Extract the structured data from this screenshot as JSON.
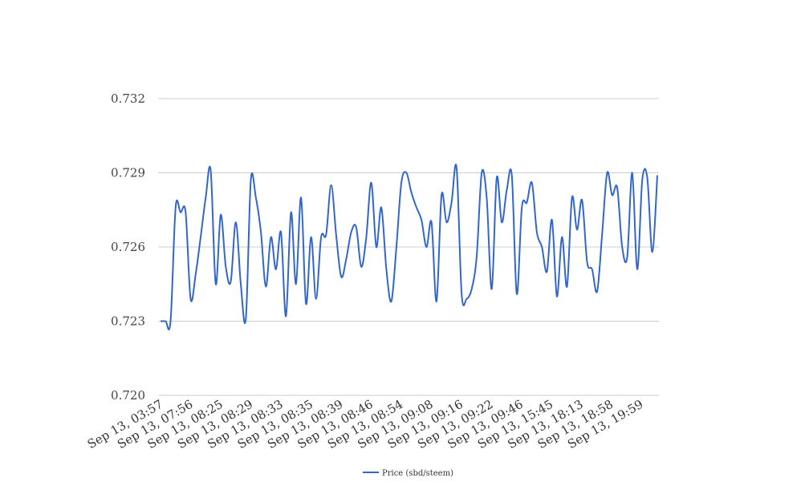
{
  "chart_data": {
    "type": "line",
    "ylim": [
      0.72,
      0.732
    ],
    "y_ticks": [
      "0.720",
      "0.723",
      "0.726",
      "0.729",
      "0.732"
    ],
    "x_tick_labels": [
      "Sep 13, 03:57",
      "Sep 13, 07:56",
      "Sep 13, 08:25",
      "Sep 13, 08:29",
      "Sep 13, 08:33",
      "Sep 13, 08:35",
      "Sep 13, 08:39",
      "Sep 13, 08:46",
      "Sep 13, 08:54",
      "Sep 13, 09:08",
      "Sep 13, 09:16",
      "Sep 13, 09:22",
      "Sep 13, 09:46",
      "Sep 13, 15:45",
      "Sep 13, 18:13",
      "Sep 13, 18:58",
      "Sep 13, 19:59"
    ],
    "grid": true,
    "legend_position": "bottom",
    "series": [
      {
        "name": "Price (sbd/steem)",
        "color": "#3366cc",
        "values": [
          0.723,
          0.723,
          0.723,
          0.7276,
          0.7274,
          0.7274,
          0.7239,
          0.7249,
          0.7264,
          0.728,
          0.7291,
          0.7245,
          0.7273,
          0.7252,
          0.7246,
          0.727,
          0.7245,
          0.7231,
          0.7287,
          0.728,
          0.7266,
          0.7244,
          0.7264,
          0.7251,
          0.7266,
          0.7232,
          0.7274,
          0.7245,
          0.728,
          0.7237,
          0.7264,
          0.7239,
          0.7264,
          0.7265,
          0.7285,
          0.7265,
          0.7248,
          0.7255,
          0.7266,
          0.7268,
          0.7252,
          0.7264,
          0.7286,
          0.726,
          0.7276,
          0.7251,
          0.7238,
          0.726,
          0.7286,
          0.729,
          0.7282,
          0.7276,
          0.7271,
          0.726,
          0.727,
          0.7238,
          0.7281,
          0.727,
          0.7278,
          0.7292,
          0.7241,
          0.7239,
          0.7243,
          0.7256,
          0.729,
          0.728,
          0.7243,
          0.7288,
          0.727,
          0.7283,
          0.7289,
          0.7241,
          0.7276,
          0.7278,
          0.7286,
          0.7266,
          0.726,
          0.725,
          0.7271,
          0.724,
          0.7264,
          0.7244,
          0.728,
          0.7267,
          0.7279,
          0.7254,
          0.7251,
          0.7242,
          0.7265,
          0.729,
          0.7281,
          0.7284,
          0.726,
          0.7256,
          0.729,
          0.7251,
          0.7287,
          0.7288,
          0.7258,
          0.7289
        ]
      }
    ]
  }
}
